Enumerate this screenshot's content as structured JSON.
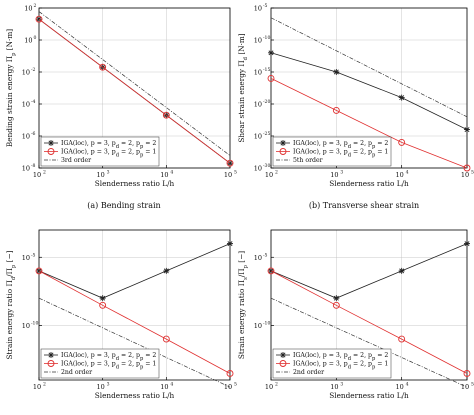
{
  "colors": {
    "iga_p2": "#222222",
    "iga_p1": "#e03030",
    "reference": "#333333",
    "axis": "#000000",
    "grid": "#bdbdbd"
  },
  "figure": {
    "captions": {
      "a": "(a) Bending strain",
      "b": "(b) Transverse shear strain"
    }
  },
  "chart_data": [
    {
      "type": "line",
      "id": "a",
      "ylabel": "Bending strain energy Π_p [N·m]",
      "xlabel": "Slenderness ratio L/h",
      "xscale": "log",
      "yscale": "log",
      "xlim": [
        100,
        100000
      ],
      "ylim": [
        1e-08,
        100
      ],
      "grid": true,
      "legend_position": "bottom-left",
      "x_ticks": [
        [
          "10",
          "2"
        ],
        [
          "10",
          "3"
        ],
        [
          "10",
          "4"
        ],
        [
          "10",
          "5"
        ]
      ],
      "y_ticks": [
        [
          "10",
          "2"
        ],
        [
          "10",
          "0"
        ],
        [
          "10",
          "-2"
        ],
        [
          "10",
          "-4"
        ],
        [
          "10",
          "-6"
        ],
        [
          "10",
          "-8"
        ]
      ],
      "series": [
        {
          "name": "IGA(loc), p = 3, p_d = 2, p_p = 2",
          "marker": "star",
          "x": [
            100,
            1000,
            10000,
            100000
          ],
          "y": [
            20,
            0.02,
            2e-05,
            2e-08
          ]
        },
        {
          "name": "IGA(loc), p = 3, p_d = 2, p_p = 1",
          "marker": "circle",
          "x": [
            100,
            1000,
            10000,
            100000
          ],
          "y": [
            20,
            0.02,
            2e-05,
            2e-08
          ]
        },
        {
          "name": "3rd order",
          "marker": "none",
          "dash": "dashdot",
          "x": [
            100,
            100000
          ],
          "y": [
            60,
            6e-08
          ]
        }
      ]
    },
    {
      "type": "line",
      "id": "b",
      "ylabel": "Shear strain energy Π_d [N·m]",
      "xlabel": "Slenderness ratio L/h",
      "xscale": "log",
      "yscale": "log",
      "xlim": [
        100,
        100000
      ],
      "ylim": [
        1e-30,
        1e-05
      ],
      "grid": true,
      "legend_position": "bottom-left",
      "x_ticks": [
        [
          "10",
          "2"
        ],
        [
          "10",
          "3"
        ],
        [
          "10",
          "4"
        ],
        [
          "10",
          "5"
        ]
      ],
      "y_ticks": [
        [
          "10",
          "-5"
        ],
        [
          "10",
          "-10"
        ],
        [
          "10",
          "-15"
        ],
        [
          "10",
          "-20"
        ],
        [
          "10",
          "-25"
        ],
        [
          "10",
          "-30"
        ]
      ],
      "series": [
        {
          "name": "IGA(loc), p = 3, p_d = 2, p_p = 2",
          "marker": "star",
          "x": [
            100,
            1000,
            10000,
            100000
          ],
          "y": [
            1e-12,
            1e-15,
            1e-19,
            1e-24
          ]
        },
        {
          "name": "IGA(loc), p = 3, p_d = 2, p_p = 1",
          "marker": "circle",
          "x": [
            100,
            1000,
            10000,
            100000
          ],
          "y": [
            1e-16,
            1e-21,
            1e-26,
            1e-30
          ]
        },
        {
          "name": "5th order",
          "marker": "none",
          "dash": "dashdot",
          "x": [
            100,
            100000
          ],
          "y": [
            3e-07,
            1e-22
          ]
        }
      ]
    },
    {
      "type": "line",
      "id": "c",
      "ylabel": "Strain energy ratio Π_d/Π_p [−]",
      "xlabel": "Slenderness ratio L/h",
      "xscale": "log",
      "yscale": "log",
      "xlim": [
        100,
        100000
      ],
      "ylim": [
        1e-14,
        0.001
      ],
      "grid": true,
      "legend_position": "bottom-left",
      "x_ticks": [
        [
          "10",
          "2"
        ],
        [
          "10",
          "3"
        ],
        [
          "10",
          "4"
        ],
        [
          "10",
          "5"
        ]
      ],
      "y_ticks": [
        [
          "10",
          "-5"
        ],
        [
          "10",
          "-10"
        ]
      ],
      "series": [
        {
          "name": "IGA(loc), p = 3, p_d = 2, p_p = 2",
          "marker": "star",
          "x": [
            100,
            1000,
            10000,
            100000
          ],
          "y": [
            1e-06,
            1e-08,
            1e-06,
            0.0001
          ]
        },
        {
          "name": "IGA(loc), p = 3, p_d = 2, p_p = 1",
          "marker": "circle",
          "x": [
            100,
            1000,
            10000,
            100000
          ],
          "y": [
            1e-06,
            3e-09,
            1e-11,
            3e-14
          ]
        },
        {
          "name": "2nd order",
          "marker": "none",
          "dash": "dashdot",
          "x": [
            100,
            100000
          ],
          "y": [
            1e-08,
            3e-15
          ]
        }
      ]
    },
    {
      "type": "line",
      "id": "d",
      "ylabel": "Strain energy ratio Π_s/Π_p [−]",
      "xlabel": "Slenderness ratio L/h",
      "xscale": "log",
      "yscale": "log",
      "xlim": [
        100,
        100000
      ],
      "ylim": [
        1e-14,
        0.001
      ],
      "grid": true,
      "legend_position": "bottom-left",
      "x_ticks": [
        [
          "10",
          "2"
        ],
        [
          "10",
          "3"
        ],
        [
          "10",
          "4"
        ],
        [
          "10",
          "5"
        ]
      ],
      "y_ticks": [
        [
          "10",
          "-5"
        ],
        [
          "10",
          "-10"
        ]
      ],
      "series": [
        {
          "name": "IGA(loc), p = 3, p_d = 2, p_p = 2",
          "marker": "star",
          "x": [
            100,
            1000,
            10000,
            100000
          ],
          "y": [
            1e-06,
            1e-08,
            1e-06,
            0.0001
          ]
        },
        {
          "name": "IGA(loc), p = 3, p_d = 2, p_p = 1",
          "marker": "circle",
          "x": [
            100,
            1000,
            10000,
            100000
          ],
          "y": [
            1e-06,
            3e-09,
            1e-11,
            3e-14
          ]
        },
        {
          "name": "2nd order",
          "marker": "none",
          "dash": "dashdot",
          "x": [
            100,
            100000
          ],
          "y": [
            1e-08,
            3e-15
          ]
        }
      ]
    }
  ]
}
